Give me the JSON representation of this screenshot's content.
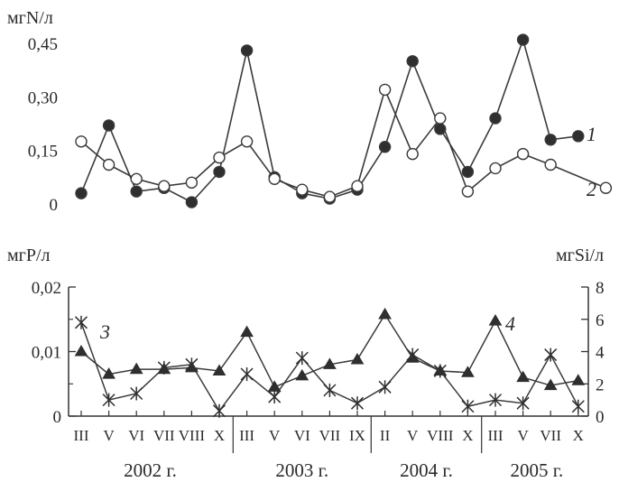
{
  "chart_data": [
    {
      "type": "line",
      "ylabel": "мгN/л",
      "ylim": [
        0,
        0.45
      ],
      "yticks": [
        "0",
        "0,15",
        "0,30",
        "0,45"
      ],
      "grid": false,
      "series": [
        {
          "name": "1",
          "marker": "filled-circle",
          "x": [
            0,
            1,
            2,
            3,
            4,
            5,
            6,
            7,
            8,
            9,
            10,
            11,
            12,
            13,
            14,
            15,
            16,
            17,
            18,
            19
          ],
          "values": [
            0.03,
            0.22,
            0.035,
            0.045,
            0.005,
            0.09,
            0.43,
            0.075,
            0.03,
            0.015,
            0.04,
            0.16,
            0.4,
            0.21,
            0.09,
            0.24,
            0.46,
            0.18,
            0.19,
            null
          ]
        },
        {
          "name": "2",
          "marker": "open-circle",
          "x": [
            0,
            1,
            2,
            3,
            4,
            5,
            6,
            7,
            8,
            9,
            10,
            11,
            12,
            13,
            14,
            15,
            16,
            17,
            18,
            19
          ],
          "values": [
            0.175,
            0.11,
            0.07,
            0.05,
            0.06,
            0.13,
            0.175,
            0.07,
            0.04,
            0.02,
            0.05,
            0.32,
            0.14,
            0.24,
            0.035,
            0.1,
            0.14,
            0.11,
            null,
            0.045
          ]
        }
      ]
    },
    {
      "type": "line",
      "ylabel": "мгP/л",
      "ylim": [
        0,
        0.02
      ],
      "yticks": [
        "0",
        "0,01",
        "0,02"
      ],
      "y2label": "мгSi/л",
      "y2lim": [
        0,
        8
      ],
      "y2ticks": [
        "0",
        "2",
        "4",
        "6",
        "8"
      ],
      "categories": [
        "III",
        "V",
        "VI",
        "VII",
        "VIII",
        "X",
        "III",
        "V",
        "VI",
        "VII",
        "IX",
        "II",
        "V",
        "VIII",
        "X",
        "III",
        "V",
        "VII",
        "X"
      ],
      "years": [
        {
          "label": "2002 г.",
          "from": 0,
          "to": 5
        },
        {
          "label": "2003 г.",
          "from": 6,
          "to": 10
        },
        {
          "label": "2004 г.",
          "from": 11,
          "to": 14
        },
        {
          "label": "2005 г.",
          "from": 15,
          "to": 18
        }
      ],
      "grid": false,
      "series": [
        {
          "name": "3",
          "marker": "star",
          "axis": "left",
          "x": [
            0,
            1,
            2,
            3,
            4,
            5,
            6,
            7,
            8,
            9,
            10,
            11,
            12,
            13,
            14,
            15,
            16,
            17,
            18,
            19
          ],
          "values": [
            0.0145,
            0.0025,
            0.0035,
            0.0075,
            0.008,
            0.0008,
            0.0065,
            0.003,
            0.009,
            0.004,
            0.002,
            0.0045,
            0.0095,
            0.007,
            0.0015,
            0.0025,
            0.002,
            0.0095,
            0.0015,
            null
          ]
        },
        {
          "name": "4",
          "marker": "filled-triangle",
          "axis": "right",
          "x": [
            0,
            1,
            2,
            3,
            4,
            5,
            6,
            7,
            8,
            9,
            10,
            11,
            12,
            13,
            14,
            15,
            16,
            17,
            18,
            19
          ],
          "values": [
            4.0,
            2.6,
            2.9,
            2.9,
            3.0,
            2.8,
            5.2,
            1.8,
            2.5,
            3.2,
            3.5,
            6.3,
            3.6,
            2.8,
            2.7,
            5.9,
            2.4,
            1.9,
            2.2,
            null
          ]
        }
      ]
    }
  ]
}
